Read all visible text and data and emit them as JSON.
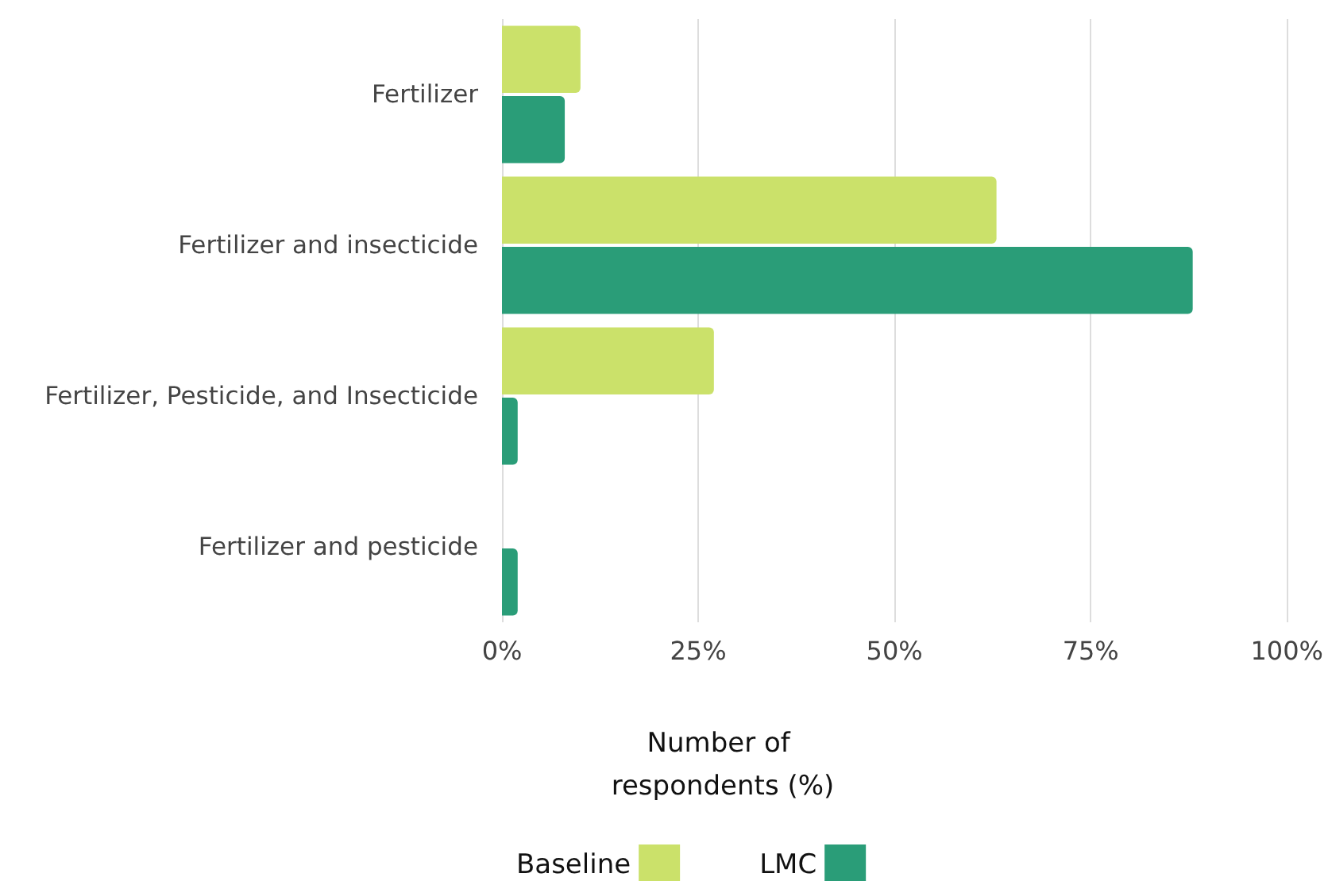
{
  "chart_data": {
    "type": "bar",
    "orientation": "horizontal",
    "categories": [
      "Fertilizer",
      "Fertilizer and insecticide",
      "Fertilizer, Pesticide, and Insecticide",
      "Fertilizer and pesticide"
    ],
    "series": [
      {
        "name": "Baseline",
        "color": "#cbe16a",
        "values": [
          10,
          63,
          27,
          0
        ]
      },
      {
        "name": "LMC",
        "color": "#2a9d78",
        "values": [
          8,
          88,
          2,
          2
        ]
      }
    ],
    "xlabel": "Number of respondents (%)",
    "xlim": [
      0,
      100
    ],
    "xticks": [
      {
        "value": 0,
        "label": "0%"
      },
      {
        "value": 25,
        "label": "25%"
      },
      {
        "value": 50,
        "label": "50%"
      },
      {
        "value": 75,
        "label": "75%"
      },
      {
        "value": 100,
        "label": "100%"
      }
    ],
    "grid": "x",
    "legend": "bottom"
  }
}
